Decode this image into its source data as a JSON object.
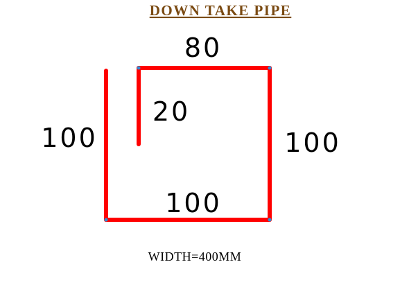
{
  "title": "DOWN TAKE PIPE",
  "dimensions": {
    "top": "80",
    "inner_lip": "20",
    "left": "100",
    "right": "100",
    "bottom": "100"
  },
  "footer_note": "WIDTH=400MM",
  "colors": {
    "title": "#7a4a12",
    "profile_line": "#ff0000",
    "corner_point": "#2f8fd8",
    "text": "#000000"
  }
}
